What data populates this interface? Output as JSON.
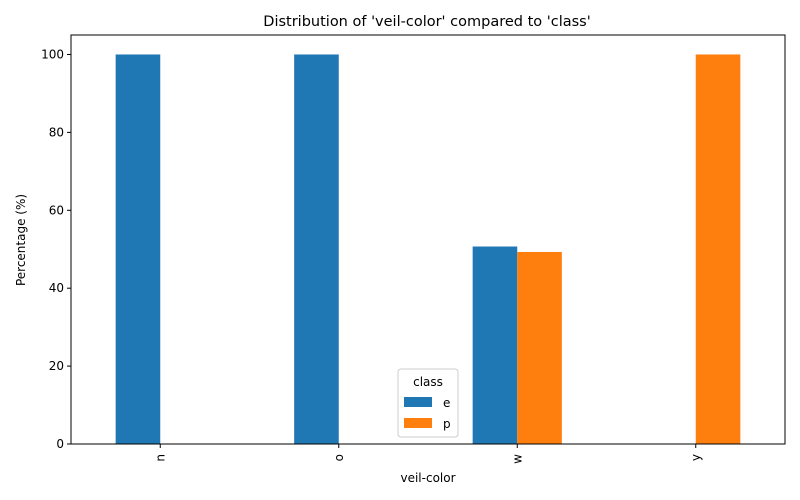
{
  "chart_data": {
    "type": "bar",
    "title": "Distribution of 'veil-color' compared to 'class'",
    "xlabel": "veil-color",
    "ylabel": "Percentage (%)",
    "categories": [
      "n",
      "o",
      "w",
      "y"
    ],
    "series": [
      {
        "name": "e",
        "color": "#1f77b4",
        "values": [
          100,
          100,
          50.7,
          0
        ]
      },
      {
        "name": "p",
        "color": "#ff7f0e",
        "values": [
          0,
          0,
          49.3,
          100
        ]
      }
    ],
    "ylim": [
      0,
      105
    ],
    "yticks": [
      0,
      20,
      40,
      60,
      80,
      100
    ],
    "grid": false,
    "legend": {
      "title": "class",
      "placement": "lower-center"
    }
  }
}
